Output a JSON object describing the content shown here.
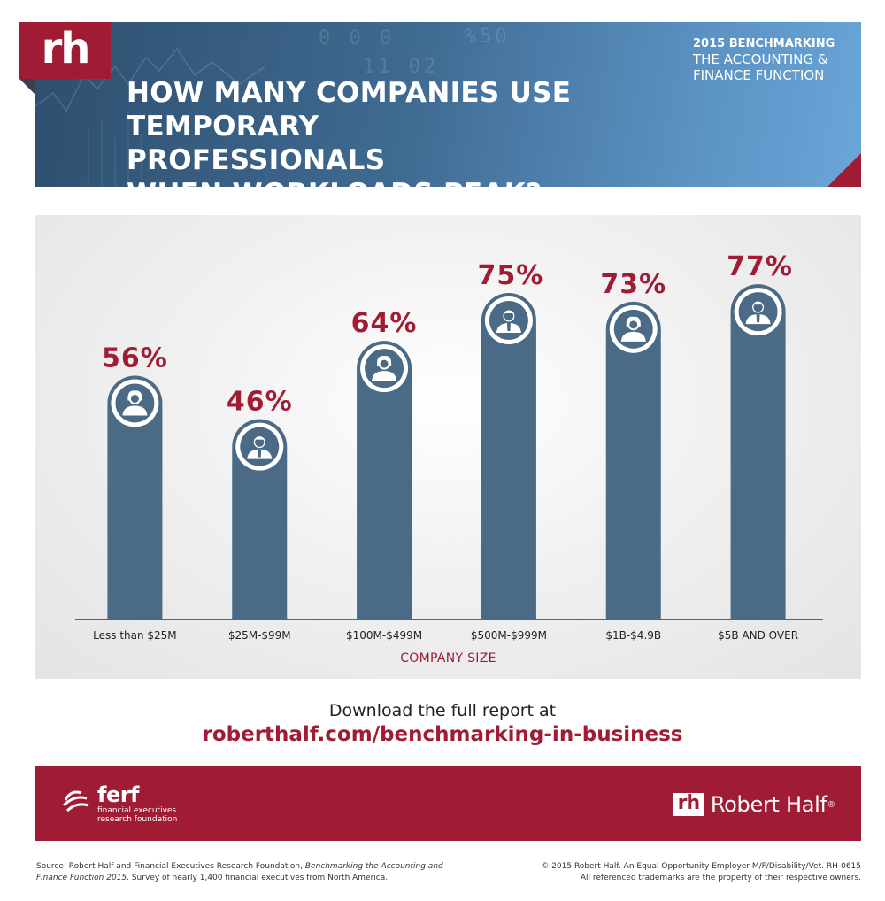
{
  "header": {
    "logo_text": "rh",
    "title_lines": [
      "HOW MANY COMPANIES USE",
      "TEMPORARY PROFESSIONALS",
      "WHEN WORKLOADS PEAK?"
    ],
    "tag_line1": "2015 BENCHMARKING",
    "tag_line2": "THE ACCOUNTING &",
    "tag_line3": "FINANCE FUNCTION"
  },
  "chart_data": {
    "type": "bar",
    "title": "HOW MANY COMPANIES USE TEMPORARY PROFESSIONALS WHEN WORKLOADS PEAK?",
    "categories": [
      "Less than $25M",
      "$25M-$99M",
      "$100M-$499M",
      "$500M-$999M",
      "$1B-$4.9B",
      "$5B AND OVER"
    ],
    "values": [
      56,
      46,
      64,
      75,
      73,
      77
    ],
    "value_labels": [
      "56%",
      "46%",
      "64%",
      "75%",
      "73%",
      "77%"
    ],
    "icons": [
      "woman-icon",
      "man-icon",
      "woman-icon",
      "man-icon",
      "woman-icon",
      "man-icon"
    ],
    "xlabel": "COMPANY SIZE",
    "ylabel": "",
    "ylim": [
      0,
      100
    ],
    "grid": false,
    "bar_color": "#4a6a85",
    "label_color": "#a01c35"
  },
  "download": {
    "line1": "Download the full report at",
    "url": "roberthalf.com/benchmarking-in-business"
  },
  "footer": {
    "ferf_word": "ferf",
    "ferf_sub": "financial executives research foundation",
    "rh_mark": "rh",
    "rh_name": "Robert Half",
    "rh_reg": "®"
  },
  "fineprint": {
    "source_prefix": "Source: Robert Half and Financial Executives Research Foundation, ",
    "source_italic": "Benchmarking the Accounting and Finance Function 2015",
    "source_suffix": ". Survey of nearly 1,400 financial executives from North America.",
    "copyright": "© 2015 Robert Half. An Equal Opportunity Employer M/F/Disability/Vet. RH-0615",
    "trademarks": "All referenced trademarks are the property of their respective owners."
  },
  "colors": {
    "brand_red": "#a01c35",
    "bar_blue": "#4a6a85",
    "banner_blue": "#3f6a91"
  }
}
